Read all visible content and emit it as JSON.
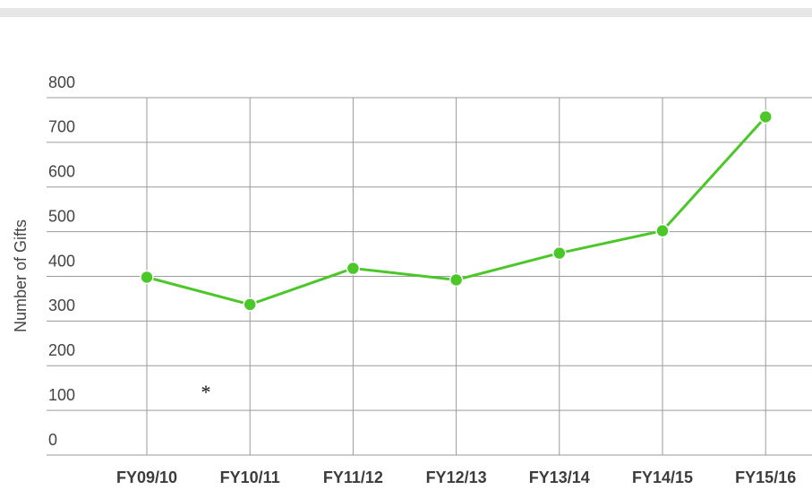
{
  "chart_data": {
    "type": "line",
    "y_label": "Number of Gifts",
    "categories": [
      "FY09/10",
      "FY10/11",
      "FY11/12",
      "FY12/13",
      "FY13/14",
      "FY14/15",
      "FY15/16"
    ],
    "series": [
      {
        "name": "Gifts",
        "color": "#4cc72a",
        "values": [
          398,
          337,
          418,
          392,
          452,
          502,
          757
        ]
      }
    ],
    "ylim": [
      0,
      800
    ],
    "yticks": [
      0,
      100,
      200,
      300,
      400,
      500,
      600,
      700,
      800
    ],
    "grid": true,
    "annotation": "*"
  }
}
